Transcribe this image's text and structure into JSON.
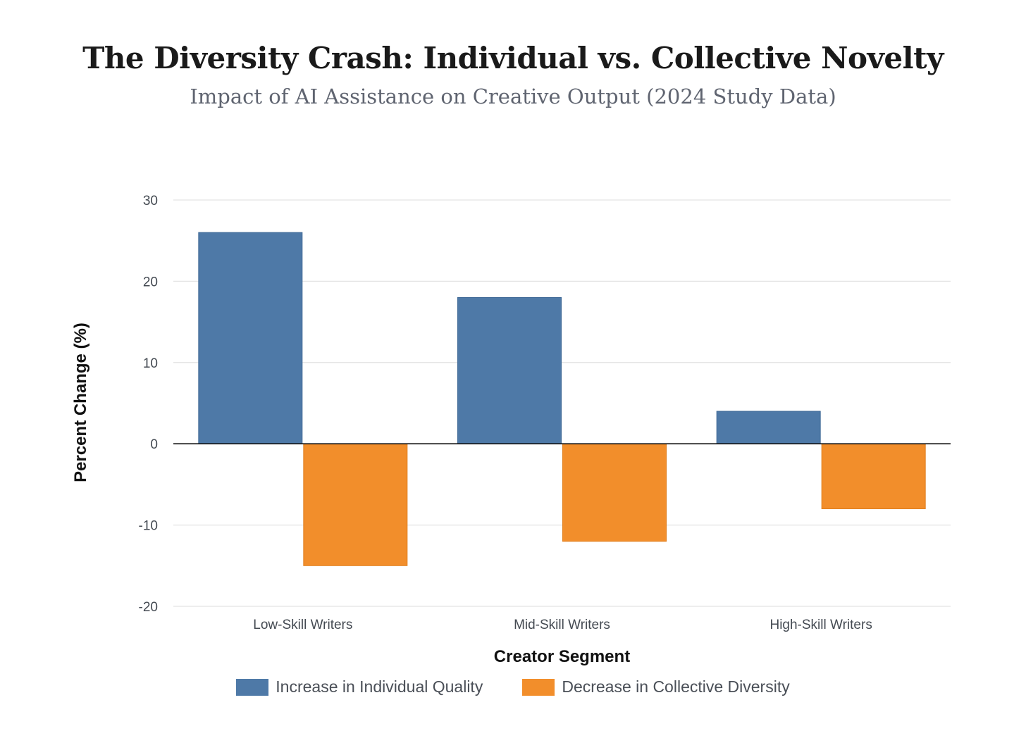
{
  "chart_data": {
    "type": "bar",
    "title": "The Diversity Crash: Individual vs. Collective Novelty",
    "subtitle": "Impact of AI Assistance on Creative Output (2024 Study Data)",
    "xlabel": "Creator Segment",
    "ylabel": "Percent Change (%)",
    "categories": [
      "Low-Skill Writers",
      "Mid-Skill Writers",
      "High-Skill Writers"
    ],
    "series": [
      {
        "name": "Increase in Individual Quality",
        "color": "#4e79a7",
        "values": [
          26,
          18,
          4
        ]
      },
      {
        "name": "Decrease in Collective Diversity",
        "color": "#f28e2b",
        "values": [
          -15,
          -12,
          -8
        ]
      }
    ],
    "ylim": [
      -20,
      30
    ],
    "yticks": [
      30,
      20,
      10,
      0,
      -10,
      -20
    ],
    "grid": true,
    "legend_position": "bottom"
  }
}
